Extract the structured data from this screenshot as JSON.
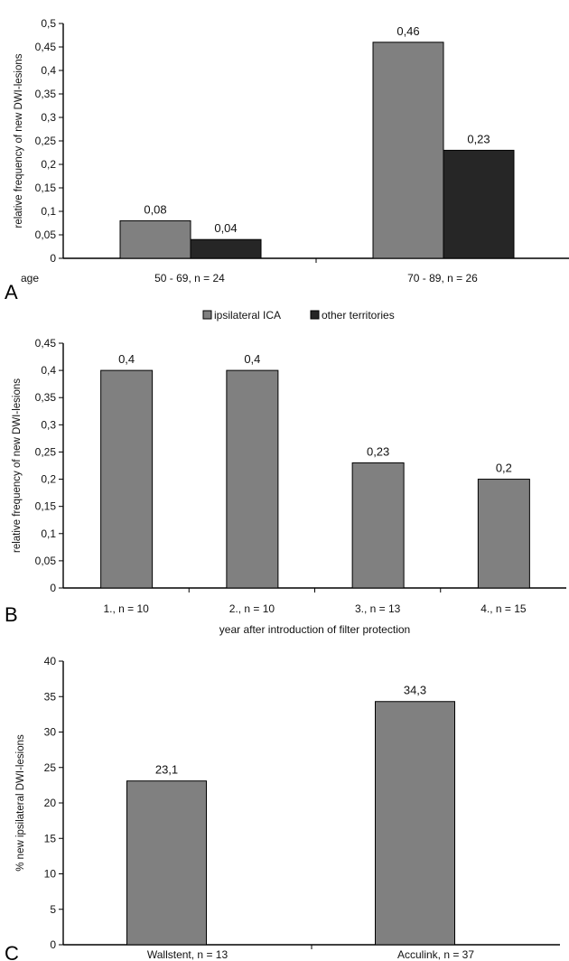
{
  "colors": {
    "light": "#808080",
    "dark": "#262626",
    "axis": "#000000"
  },
  "chart_data": [
    {
      "panel": "A",
      "type": "bar",
      "ylabel": "relative frequency of new DWI-lesions",
      "xlabel": "",
      "x_prefix": "age",
      "ylim": [
        0,
        0.5
      ],
      "yticks": [
        "0",
        "0,05",
        "0,1",
        "0,15",
        "0,2",
        "0,25",
        "0,3",
        "0,35",
        "0,4",
        "0,45",
        "0,5"
      ],
      "categories": [
        "50 - 69, n = 24",
        "70 - 89, n = 26"
      ],
      "series": [
        {
          "name": "ipsilateral ICA",
          "values": [
            0.08,
            0.46
          ],
          "labels": [
            "0,08",
            "0,46"
          ]
        },
        {
          "name": "other territories",
          "values": [
            0.04,
            0.23
          ],
          "labels": [
            "0,04",
            "0,23"
          ]
        }
      ],
      "legend": "bottom",
      "grid": false
    },
    {
      "panel": "B",
      "type": "bar",
      "ylabel": "relative frequency of new DWI-lesions",
      "xlabel": "year after introduction of filter protection",
      "ylim": [
        0,
        0.45
      ],
      "yticks": [
        "0",
        "0,05",
        "0,1",
        "0,15",
        "0,2",
        "0,25",
        "0,3",
        "0,35",
        "0,4",
        "0,45"
      ],
      "categories": [
        "1., n = 10",
        "2., n = 10",
        "3., n = 13",
        "4., n = 15"
      ],
      "series": [
        {
          "values": [
            0.4,
            0.4,
            0.23,
            0.2
          ],
          "labels": [
            "0,4",
            "0,4",
            "0,23",
            "0,2"
          ]
        }
      ],
      "grid": false
    },
    {
      "panel": "C",
      "type": "bar",
      "ylabel": "% new ipsilateral DWI-lesions",
      "xlabel": "",
      "ylim": [
        0,
        40
      ],
      "yticks": [
        "0",
        "5",
        "10",
        "15",
        "20",
        "25",
        "30",
        "35",
        "40"
      ],
      "categories": [
        "Wallstent, n = 13",
        "Acculink, n = 37"
      ],
      "series": [
        {
          "values": [
            23.1,
            34.3
          ],
          "labels": [
            "23,1",
            "34,3"
          ]
        }
      ],
      "grid": false
    }
  ]
}
